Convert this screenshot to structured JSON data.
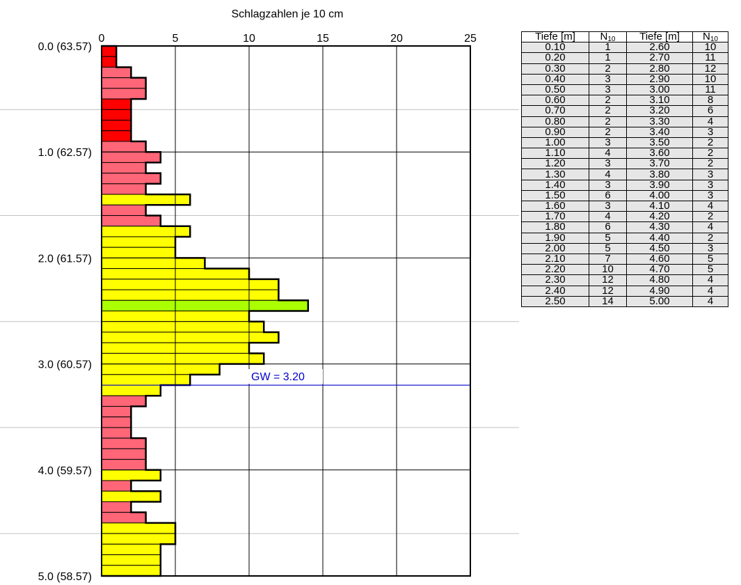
{
  "chart_data": {
    "type": "bar",
    "orientation": "horizontal",
    "title": "Schlagzahlen je 10 cm",
    "x_ticks": [
      "0",
      "5",
      "10",
      "15",
      "20",
      "25"
    ],
    "xlim": [
      0,
      25
    ],
    "ylim": [
      0,
      5.0
    ],
    "y_ticks": [
      "0.0 (63.57)",
      "1.0 (62.57)",
      "2.0 (61.57)",
      "3.0 (60.57)",
      "4.0 (59.57)",
      "5.0 (58.57)"
    ],
    "grid": true,
    "depths": [
      0.1,
      0.2,
      0.3,
      0.4,
      0.5,
      0.6,
      0.7,
      0.8,
      0.9,
      1.0,
      1.1,
      1.2,
      1.3,
      1.4,
      1.5,
      1.6,
      1.7,
      1.8,
      1.9,
      2.0,
      2.1,
      2.2,
      2.3,
      2.4,
      2.5,
      2.6,
      2.7,
      2.8,
      2.9,
      3.0,
      3.1,
      3.2,
      3.3,
      3.4,
      3.5,
      3.6,
      3.7,
      3.8,
      3.9,
      4.0,
      4.1,
      4.2,
      4.3,
      4.4,
      4.5,
      4.6,
      4.7,
      4.8,
      4.9,
      5.0
    ],
    "values": [
      1,
      1,
      2,
      3,
      3,
      2,
      2,
      2,
      2,
      3,
      4,
      3,
      4,
      3,
      6,
      3,
      4,
      6,
      5,
      5,
      7,
      10,
      12,
      12,
      14,
      10,
      11,
      12,
      10,
      11,
      8,
      6,
      4,
      3,
      2,
      2,
      2,
      3,
      3,
      3,
      4,
      2,
      4,
      2,
      3,
      5,
      5,
      4,
      4,
      4
    ],
    "bar_colors": [
      "#ff0000",
      "#ff0000",
      "#ff6677",
      "#ff6677",
      "#ff6677",
      "#ff0000",
      "#ff0000",
      "#ff0000",
      "#ff0000",
      "#ff6677",
      "#ff6677",
      "#ff6677",
      "#ff6677",
      "#ff6677",
      "#ffff00",
      "#ff6677",
      "#ff6677",
      "#ffff00",
      "#ffff00",
      "#ffff00",
      "#ffff00",
      "#ffff00",
      "#ffff00",
      "#ffff00",
      "#aaff00",
      "#ffff00",
      "#ffff00",
      "#ffff00",
      "#ffff00",
      "#ffff00",
      "#ffff00",
      "#ffff00",
      "#ffff00",
      "#ff6677",
      "#ff6677",
      "#ff6677",
      "#ff6677",
      "#ff6677",
      "#ff6677",
      "#ff6677",
      "#ffff00",
      "#ff6677",
      "#ffff00",
      "#ff6677",
      "#ff6677",
      "#ffff00",
      "#ffff00",
      "#ffff00",
      "#ffff00",
      "#ffff00"
    ],
    "groundwater": {
      "label": "GW = 3.20",
      "depth": 3.2,
      "color": "#0000cc"
    },
    "layer_boundaries": [
      0.6,
      1.6,
      2.6,
      3.6,
      4.6
    ]
  },
  "table": {
    "headers": [
      "Tiefe [m]",
      "N",
      "Tiefe [m]",
      "N"
    ],
    "header_sub": "10",
    "rows": [
      [
        "0.10",
        "1",
        "2.60",
        "10"
      ],
      [
        "0.20",
        "1",
        "2.70",
        "11"
      ],
      [
        "0.30",
        "2",
        "2.80",
        "12"
      ],
      [
        "0.40",
        "3",
        "2.90",
        "10"
      ],
      [
        "0.50",
        "3",
        "3.00",
        "11"
      ],
      [
        "0.60",
        "2",
        "3.10",
        "8"
      ],
      [
        "0.70",
        "2",
        "3.20",
        "6"
      ],
      [
        "0.80",
        "2",
        "3.30",
        "4"
      ],
      [
        "0.90",
        "2",
        "3.40",
        "3"
      ],
      [
        "1.00",
        "3",
        "3.50",
        "2"
      ],
      [
        "1.10",
        "4",
        "3.60",
        "2"
      ],
      [
        "1.20",
        "3",
        "3.70",
        "2"
      ],
      [
        "1.30",
        "4",
        "3.80",
        "3"
      ],
      [
        "1.40",
        "3",
        "3.90",
        "3"
      ],
      [
        "1.50",
        "6",
        "4.00",
        "3"
      ],
      [
        "1.60",
        "3",
        "4.10",
        "4"
      ],
      [
        "1.70",
        "4",
        "4.20",
        "2"
      ],
      [
        "1.80",
        "6",
        "4.30",
        "4"
      ],
      [
        "1.90",
        "5",
        "4.40",
        "2"
      ],
      [
        "2.00",
        "5",
        "4.50",
        "3"
      ],
      [
        "2.10",
        "7",
        "4.60",
        "5"
      ],
      [
        "2.20",
        "10",
        "4.70",
        "5"
      ],
      [
        "2.30",
        "12",
        "4.80",
        "4"
      ],
      [
        "2.40",
        "12",
        "4.90",
        "4"
      ],
      [
        "2.50",
        "14",
        "5.00",
        "4"
      ]
    ]
  }
}
